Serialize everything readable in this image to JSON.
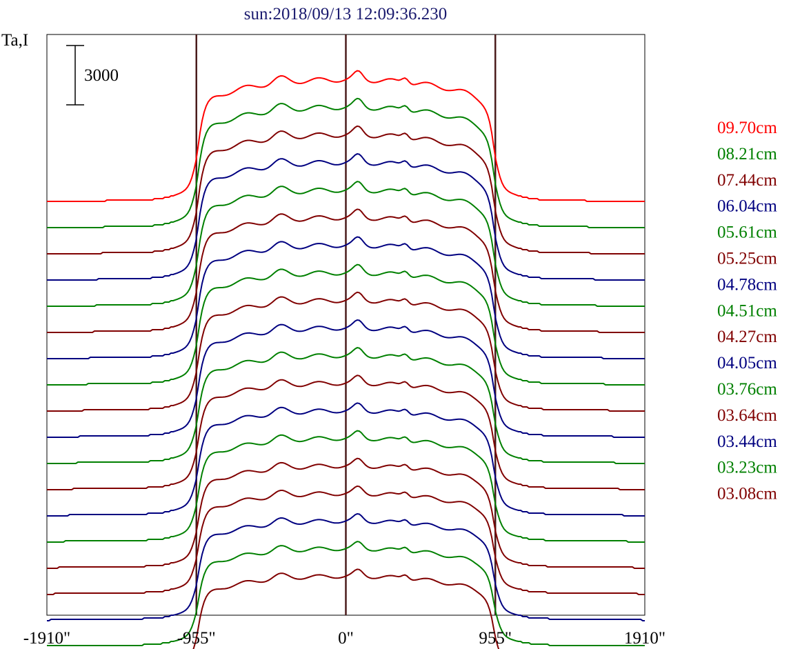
{
  "chart_data": {
    "type": "line",
    "title": "sun:2018/09/13 12:09:36.230",
    "ylabel": "Ta,I",
    "scale_bar_label": "3000",
    "scale_bar_value": 3000,
    "x_ticks": [
      {
        "value": -1910,
        "label": "-1910\""
      },
      {
        "value": -955,
        "label": "-955\""
      },
      {
        "value": 0,
        "label": "0\""
      },
      {
        "value": 955,
        "label": "955\""
      },
      {
        "value": 1910,
        "label": "1910\""
      }
    ],
    "vertical_lines": [
      -955,
      0,
      955
    ],
    "xlim": [
      -1910,
      1910
    ],
    "series": [
      {
        "name": "09.70cm",
        "color": "#ff0000"
      },
      {
        "name": "08.21cm",
        "color": "#008000"
      },
      {
        "name": "07.44cm",
        "color": "#800000"
      },
      {
        "name": "06.04cm",
        "color": "#000080"
      },
      {
        "name": "05.61cm",
        "color": "#008000"
      },
      {
        "name": "05.25cm",
        "color": "#800000"
      },
      {
        "name": "04.78cm",
        "color": "#000080"
      },
      {
        "name": "04.51cm",
        "color": "#008000"
      },
      {
        "name": "04.27cm",
        "color": "#800000"
      },
      {
        "name": "04.05cm",
        "color": "#000080"
      },
      {
        "name": "03.76cm",
        "color": "#008000"
      },
      {
        "name": "03.64cm",
        "color": "#800000"
      },
      {
        "name": "03.44cm",
        "color": "#000080"
      },
      {
        "name": "03.23cm",
        "color": "#008000"
      },
      {
        "name": "03.08cm",
        "color": "#800000"
      },
      {
        "name": "",
        "color": "#800000"
      },
      {
        "name": "",
        "color": "#000080"
      },
      {
        "name": "",
        "color": "#008000"
      },
      {
        "name": "",
        "color": "#800000"
      }
    ]
  }
}
